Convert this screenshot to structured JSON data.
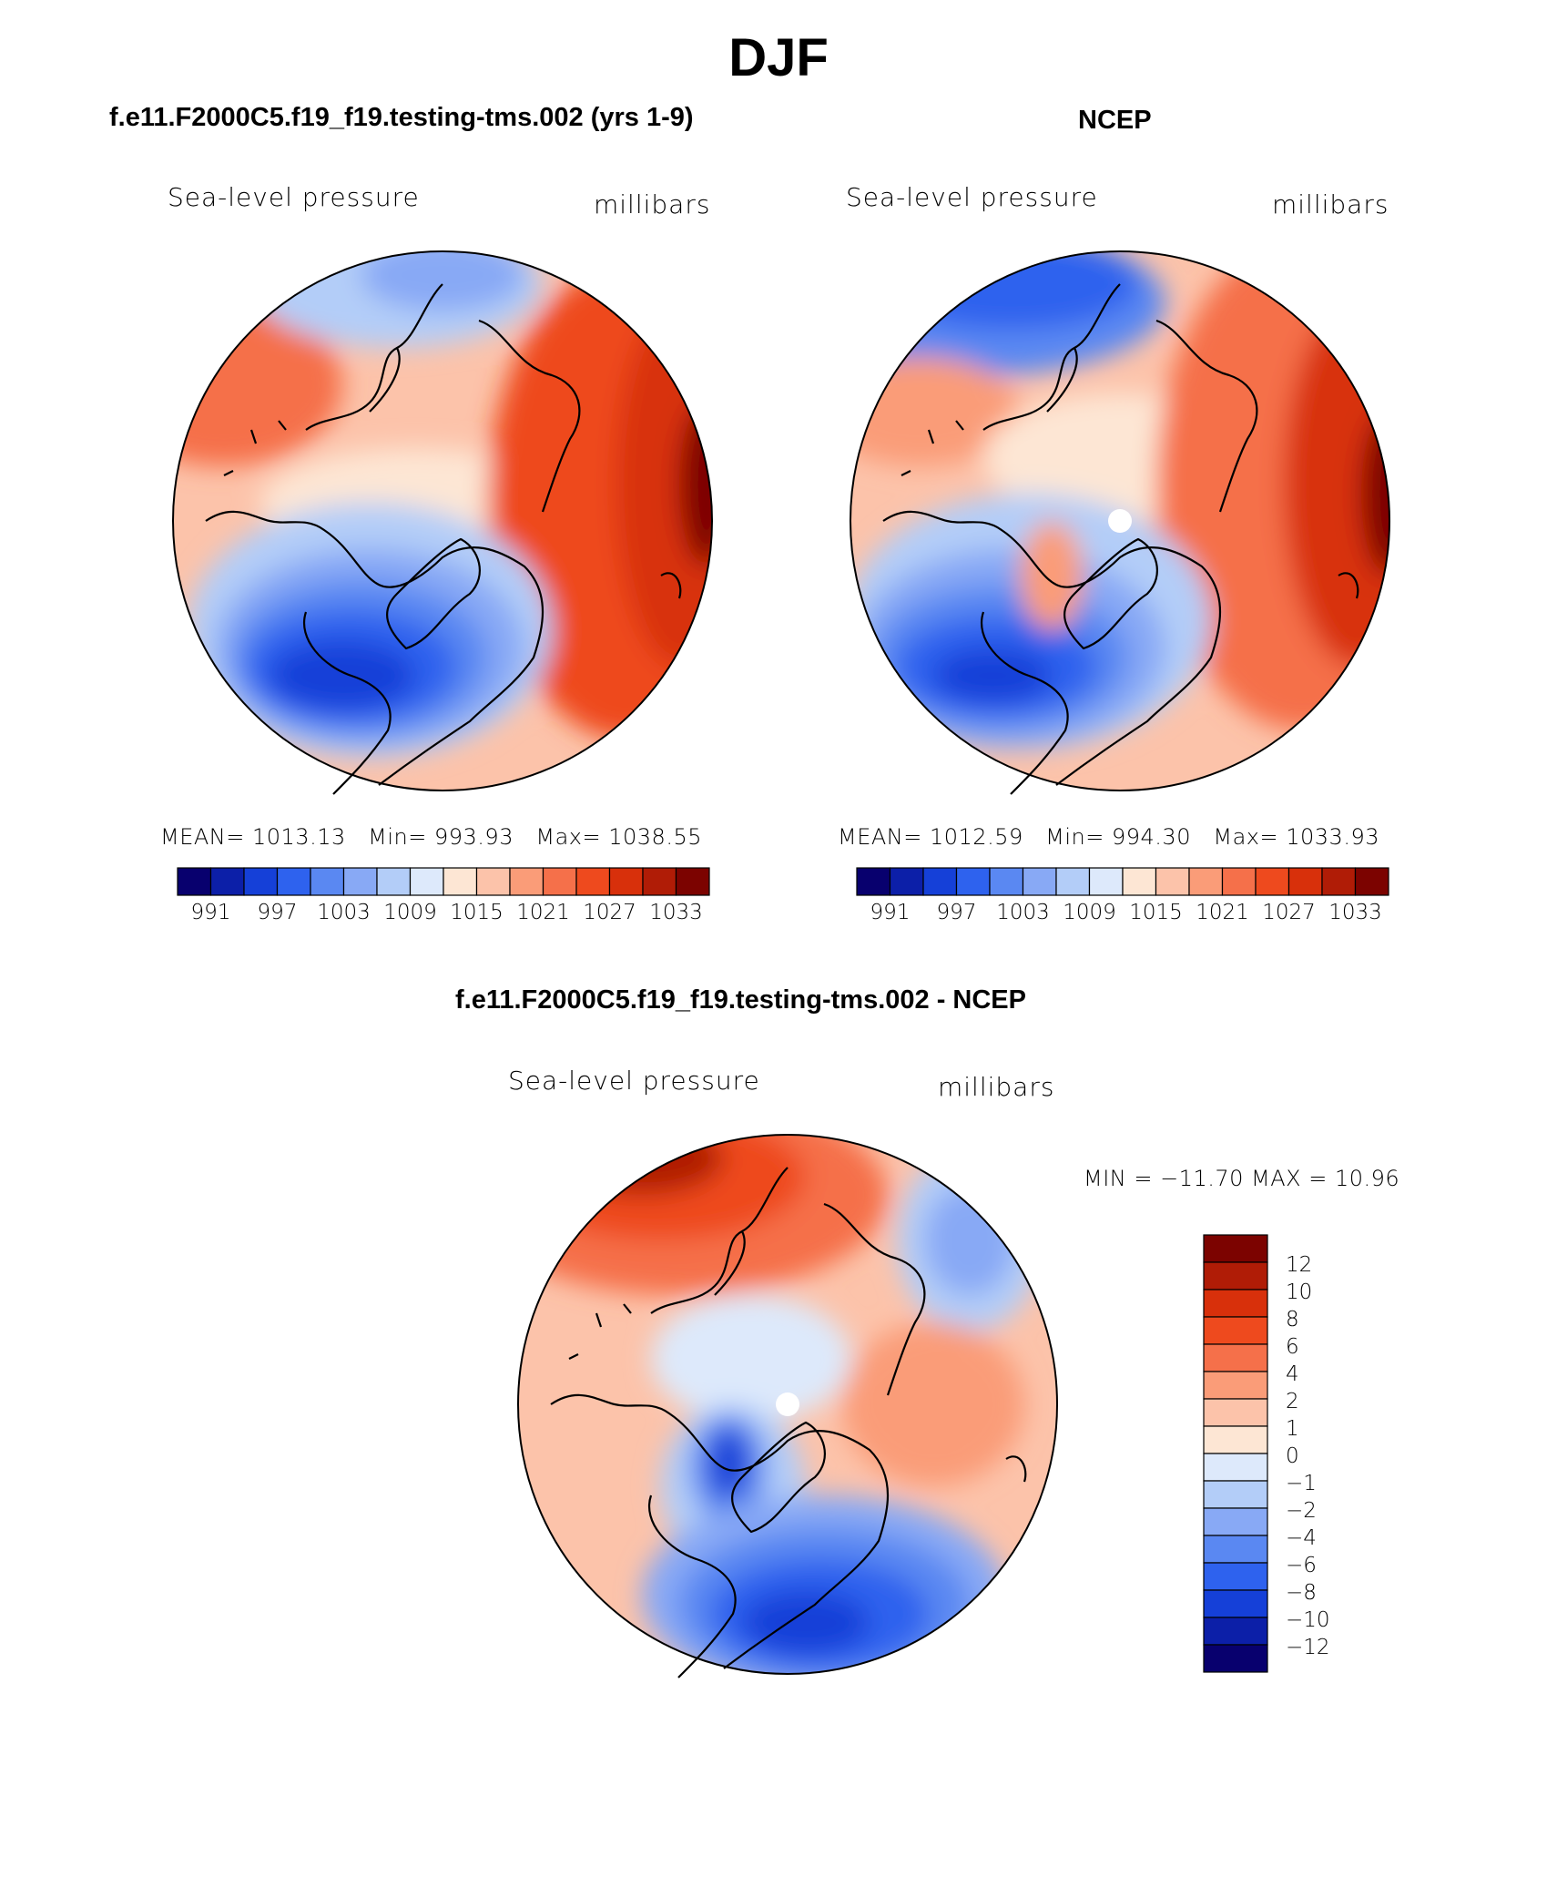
{
  "title": "DJF",
  "panels": {
    "model": {
      "title": "f.e11.F2000C5.f19_f19.testing-tms.002 (yrs 1-9)",
      "variable": "Sea-level pressure",
      "units": "millibars",
      "stats": {
        "mean_label": "MEAN=",
        "mean": "1013.13",
        "min_label": "Min=",
        "min": "993.93",
        "max_label": "Max=",
        "max": "1038.55"
      }
    },
    "obs": {
      "title": "NCEP",
      "variable": "Sea-level pressure",
      "units": "millibars",
      "stats": {
        "mean_label": "MEAN=",
        "mean": "1012.59",
        "min_label": "Min=",
        "min": "994.30",
        "max_label": "Max=",
        "max": "1033.93"
      }
    },
    "diff": {
      "title": "f.e11.F2000C5.f19_f19.testing-tms.002 - NCEP",
      "variable": "Sea-level pressure",
      "units": "millibars",
      "minmax": "MIN = −11.70 MAX =  10.96"
    }
  },
  "slp_colorbar": {
    "labels": [
      "991",
      "997",
      "1003",
      "1009",
      "1015",
      "1021",
      "1027",
      "1033"
    ],
    "colors": [
      "#08006e",
      "#0c1fa8",
      "#1540d8",
      "#2e62ee",
      "#5a88f2",
      "#88a9f5",
      "#b3cdf8",
      "#dde9fb",
      "#fde6d4",
      "#fcc3aa",
      "#fa9c78",
      "#f5704a",
      "#ee4a1e",
      "#d8300b",
      "#b01c06",
      "#7c0300"
    ]
  },
  "diff_colorbar": {
    "labels": [
      "12",
      "10",
      "8",
      "6",
      "4",
      "2",
      "1",
      "0",
      "−1",
      "−2",
      "−4",
      "−6",
      "−8",
      "−10",
      "−12"
    ],
    "colors": [
      "#7c0300",
      "#b01c06",
      "#d8300b",
      "#ee4a1e",
      "#f5704a",
      "#fa9c78",
      "#fcc3aa",
      "#fde6d4",
      "#dde9fb",
      "#b3cdf8",
      "#88a9f5",
      "#5a88f2",
      "#2e62ee",
      "#1540d8",
      "#0c1fa8",
      "#08006e"
    ]
  }
}
